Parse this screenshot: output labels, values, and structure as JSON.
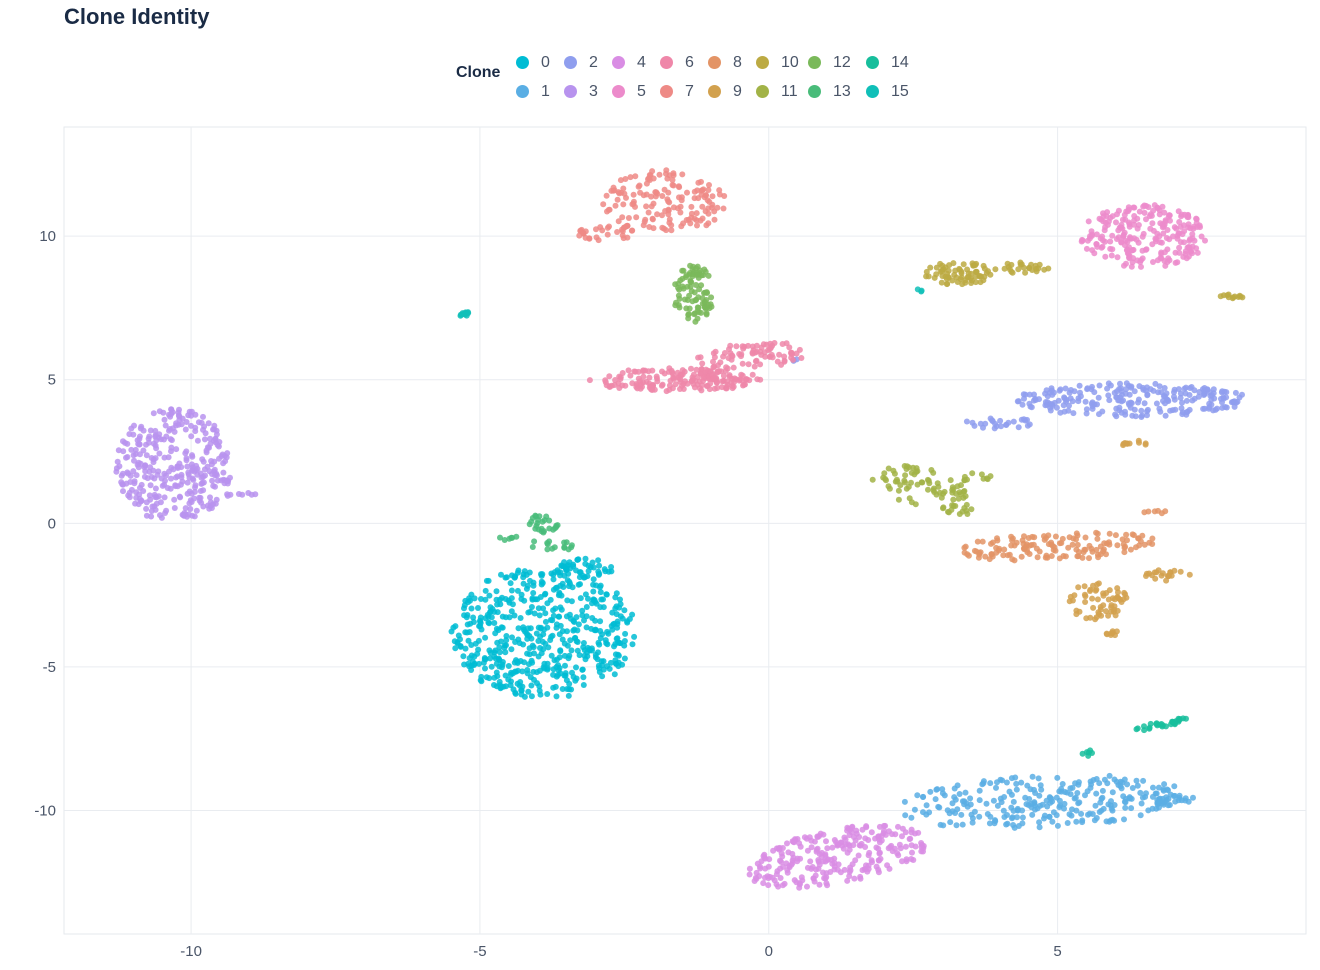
{
  "title": "Clone Identity",
  "legend": {
    "title": "Clone",
    "items": [
      {
        "label": "0",
        "color": "#00BCD4"
      },
      {
        "label": "1",
        "color": "#5AAEE4"
      },
      {
        "label": "2",
        "color": "#8F9EEE"
      },
      {
        "label": "3",
        "color": "#B893EE"
      },
      {
        "label": "4",
        "color": "#D98DE4"
      },
      {
        "label": "5",
        "color": "#EC8BCB"
      },
      {
        "label": "6",
        "color": "#EF87A9"
      },
      {
        "label": "7",
        "color": "#EE8A86"
      },
      {
        "label": "8",
        "color": "#E39466"
      },
      {
        "label": "9",
        "color": "#D2A14E"
      },
      {
        "label": "10",
        "color": "#BCAA43"
      },
      {
        "label": "11",
        "color": "#A2B347"
      },
      {
        "label": "12",
        "color": "#7AB95A"
      },
      {
        "label": "13",
        "color": "#49BC7A"
      },
      {
        "label": "14",
        "color": "#17BE9C"
      },
      {
        "label": "15",
        "color": "#10BFB8"
      }
    ]
  },
  "chart_data": {
    "type": "scatter",
    "title": "Clone Identity",
    "xlabel": "",
    "ylabel": "",
    "xlim": [
      -12.2,
      9.3
    ],
    "ylim": [
      -14.3,
      13.8
    ],
    "xticks": [
      -10,
      -5,
      0,
      5
    ],
    "yticks": [
      -10,
      -5,
      0,
      5,
      10
    ],
    "grid": true,
    "legend_position": "top",
    "series": [
      {
        "name": "0",
        "clusters": [
          {
            "cx": -3.9,
            "cy": -3.8,
            "rx": 1.6,
            "ry": 2.3,
            "n": 520
          },
          {
            "cx": -3.2,
            "cy": -1.6,
            "rx": 0.5,
            "ry": 0.4,
            "n": 40
          }
        ]
      },
      {
        "name": "1",
        "clusters": [
          {
            "cx": 4.7,
            "cy": -9.7,
            "rx": 2.6,
            "ry": 0.9,
            "n": 260,
            "tilt": 0.1
          },
          {
            "cx": 6.8,
            "cy": -9.6,
            "rx": 0.6,
            "ry": 0.2,
            "n": 25
          }
        ]
      },
      {
        "name": "2",
        "clusters": [
          {
            "cx": 6.3,
            "cy": 4.3,
            "rx": 2.0,
            "ry": 0.6,
            "n": 230
          },
          {
            "cx": 4.0,
            "cy": 3.5,
            "rx": 0.6,
            "ry": 0.2,
            "n": 25
          },
          {
            "cx": 0.4,
            "cy": 5.7,
            "rx": 0.1,
            "ry": 0.05,
            "n": 3
          }
        ]
      },
      {
        "name": "3",
        "clusters": [
          {
            "cx": -10.3,
            "cy": 2.0,
            "rx": 1.0,
            "ry": 2.0,
            "n": 330
          },
          {
            "cx": -9.1,
            "cy": 1.0,
            "rx": 0.3,
            "ry": 0.1,
            "n": 8
          }
        ]
      },
      {
        "name": "4",
        "clusters": [
          {
            "cx": 1.2,
            "cy": -11.6,
            "rx": 1.7,
            "ry": 0.9,
            "n": 260,
            "tilt": 0.45
          }
        ]
      },
      {
        "name": "5",
        "clusters": [
          {
            "cx": 6.5,
            "cy": 10.0,
            "rx": 1.1,
            "ry": 1.1,
            "n": 230
          }
        ]
      },
      {
        "name": "6",
        "clusters": [
          {
            "cx": -1.6,
            "cy": 5.0,
            "rx": 1.5,
            "ry": 0.4,
            "n": 170
          },
          {
            "cx": -0.1,
            "cy": 5.9,
            "rx": 0.7,
            "ry": 0.5,
            "n": 60
          },
          {
            "cx": -0.9,
            "cy": 5.5,
            "rx": 0.4,
            "ry": 0.5,
            "n": 30
          }
        ]
      },
      {
        "name": "7",
        "clusters": [
          {
            "cx": -1.8,
            "cy": 11.2,
            "rx": 1.1,
            "ry": 1.1,
            "n": 150
          },
          {
            "cx": -2.8,
            "cy": 10.1,
            "rx": 0.5,
            "ry": 0.3,
            "n": 30
          }
        ]
      },
      {
        "name": "8",
        "clusters": [
          {
            "cx": 5.0,
            "cy": -0.8,
            "rx": 1.7,
            "ry": 0.5,
            "n": 140,
            "tilt": 0.1
          },
          {
            "cx": 6.7,
            "cy": 0.4,
            "rx": 0.2,
            "ry": 0.1,
            "n": 6
          }
        ]
      },
      {
        "name": "9",
        "clusters": [
          {
            "cx": 5.7,
            "cy": -2.7,
            "rx": 0.5,
            "ry": 0.7,
            "n": 60
          },
          {
            "cx": 6.9,
            "cy": -1.8,
            "rx": 0.4,
            "ry": 0.2,
            "n": 20
          },
          {
            "cx": 6.0,
            "cy": -3.8,
            "rx": 0.2,
            "ry": 0.1,
            "n": 8
          },
          {
            "cx": 6.3,
            "cy": 2.8,
            "rx": 0.3,
            "ry": 0.1,
            "n": 10
          }
        ]
      },
      {
        "name": "10",
        "clusters": [
          {
            "cx": 3.3,
            "cy": 8.7,
            "rx": 0.6,
            "ry": 0.4,
            "n": 70
          },
          {
            "cx": 4.4,
            "cy": 8.9,
            "rx": 0.5,
            "ry": 0.2,
            "n": 25
          },
          {
            "cx": 8.0,
            "cy": 7.9,
            "rx": 0.25,
            "ry": 0.08,
            "n": 12
          }
        ]
      },
      {
        "name": "11",
        "clusters": [
          {
            "cx": 2.6,
            "cy": 1.3,
            "rx": 0.9,
            "ry": 0.6,
            "n": 70,
            "tilt": -0.6
          },
          {
            "cx": 3.3,
            "cy": 0.5,
            "rx": 0.3,
            "ry": 0.2,
            "n": 15
          },
          {
            "cx": 3.6,
            "cy": 1.6,
            "rx": 0.3,
            "ry": 0.2,
            "n": 10
          }
        ]
      },
      {
        "name": "12",
        "clusters": [
          {
            "cx": -1.3,
            "cy": 8.0,
            "rx": 0.35,
            "ry": 1.0,
            "n": 90
          }
        ]
      },
      {
        "name": "13",
        "clusters": [
          {
            "cx": -3.9,
            "cy": 0.0,
            "rx": 0.25,
            "ry": 0.4,
            "n": 25
          },
          {
            "cx": -3.8,
            "cy": -0.8,
            "rx": 0.5,
            "ry": 0.2,
            "n": 15
          },
          {
            "cx": -4.5,
            "cy": -0.5,
            "rx": 0.2,
            "ry": 0.1,
            "n": 6
          }
        ]
      },
      {
        "name": "14",
        "clusters": [
          {
            "cx": 6.8,
            "cy": -7.0,
            "rx": 0.5,
            "ry": 0.1,
            "n": 30,
            "tilt": 0.4
          },
          {
            "cx": 5.5,
            "cy": -8.0,
            "rx": 0.2,
            "ry": 0.1,
            "n": 6
          }
        ]
      },
      {
        "name": "15",
        "clusters": [
          {
            "cx": -5.3,
            "cy": 7.3,
            "rx": 0.15,
            "ry": 0.08,
            "n": 12
          },
          {
            "cx": 2.6,
            "cy": 8.1,
            "rx": 0.1,
            "ry": 0.05,
            "n": 3
          }
        ]
      }
    ]
  }
}
